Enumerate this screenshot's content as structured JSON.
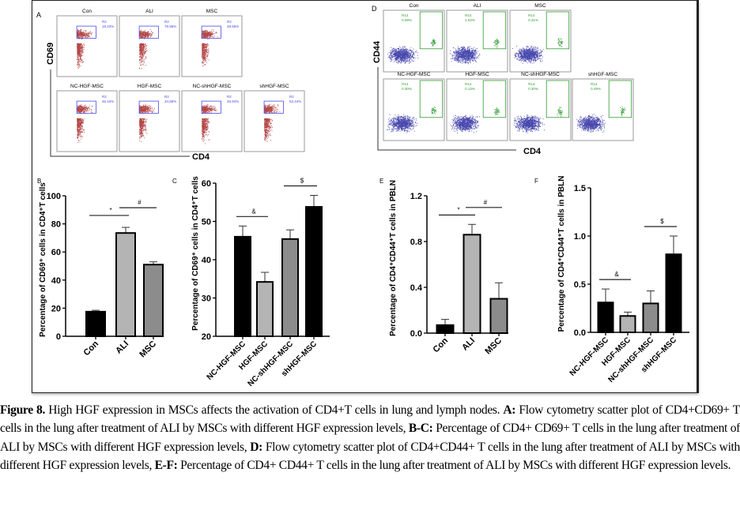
{
  "figure": {
    "panel_a": {
      "letter": "A",
      "y_label": "CD69",
      "x_label": "CD4",
      "gate_color": "#4a4ae8",
      "dot_color": "#a01818",
      "plots": [
        {
          "title": "Con",
          "gate": "R2",
          "value": "18.23%"
        },
        {
          "title": "ALI",
          "gate": "R2",
          "value": "76.86%"
        },
        {
          "title": "MSC",
          "gate": "R2",
          "value": "48.55%"
        },
        {
          "title": "NC-HGF-MSC",
          "gate": "R2",
          "value": "46.15%"
        },
        {
          "title": "HGF-MSC",
          "gate": "R2",
          "value": "34.86%"
        },
        {
          "title": "NC-shHGF-MSC",
          "gate": "R2",
          "value": "46.94%"
        },
        {
          "title": "shHGF-MSC",
          "gate": "R2",
          "value": "53.44%"
        }
      ]
    },
    "panel_d": {
      "letter": "D",
      "y_label": "CD44",
      "x_label": "CD4",
      "gate_color": "#2f9a2f",
      "dot_color": "#1a1a9a",
      "plots": [
        {
          "title": "Con",
          "gate": "R14",
          "value": "0.09%"
        },
        {
          "title": "ALI",
          "gate": "R14",
          "value": "1.02%"
        },
        {
          "title": "MSC",
          "gate": "R14",
          "value": "0.31%"
        },
        {
          "title": "NC-HGF-MSC",
          "gate": "R14",
          "value": "0.30%"
        },
        {
          "title": "HGF-MSC",
          "gate": "R14",
          "value": "0.13%"
        },
        {
          "title": "NC-shHGF-MSC",
          "gate": "R14",
          "value": "0.30%"
        },
        {
          "title": "shHGF-MSC",
          "gate": "R14",
          "value": "0.49%"
        }
      ]
    }
  },
  "chart_data": [
    {
      "panel": "B",
      "type": "bar",
      "ylabel": "Percentage of CD69⁺ cells in CD4⁺T cells",
      "ylim": [
        0,
        100
      ],
      "yticks": [
        "0",
        "20",
        "40",
        "60",
        "80",
        "100"
      ],
      "categories": [
        "Con",
        "ALI",
        "MSC"
      ],
      "values": [
        17.5,
        73.5,
        51
      ],
      "errors": [
        1,
        4,
        2
      ],
      "colors": [
        "#000000",
        "#b4b4b4",
        "#8c8c8c"
      ],
      "significance": [
        {
          "from": 0,
          "to": 1,
          "mark": "*"
        },
        {
          "from": 1,
          "to": 2,
          "mark": "#"
        }
      ]
    },
    {
      "panel": "C",
      "type": "bar",
      "ylabel": "Percentage of CD69⁺ cells in CD4⁺T cells",
      "ylim": [
        20,
        60
      ],
      "yticks": [
        "20",
        "30",
        "40",
        "50",
        "60"
      ],
      "categories": [
        "NC-HGF-MSC",
        "HGF-MSC",
        "NC-shHGF-MSC",
        "shHGF-MSC"
      ],
      "values": [
        46,
        34.2,
        45.4,
        53.8
      ],
      "errors": [
        2.8,
        2.5,
        2.4,
        3
      ],
      "colors": [
        "#000000",
        "#b4b4b4",
        "#8c8c8c",
        "#000000"
      ],
      "significance": [
        {
          "from": 0,
          "to": 1,
          "mark": "&"
        },
        {
          "from": 2,
          "to": 3,
          "mark": "$"
        }
      ]
    },
    {
      "panel": "E",
      "type": "bar",
      "ylabel": "Percentage of CD4⁺CD44⁺T cells in PBLN",
      "ylim": [
        0,
        1.2
      ],
      "yticks": [
        "0.0",
        "0.4",
        "0.8",
        "1.2"
      ],
      "categories": [
        "Con",
        "ALI",
        "MSC"
      ],
      "values": [
        0.07,
        0.86,
        0.3
      ],
      "errors": [
        0.05,
        0.09,
        0.14
      ],
      "colors": [
        "#000000",
        "#b4b4b4",
        "#8c8c8c"
      ],
      "significance": [
        {
          "from": 0,
          "to": 1,
          "mark": "*"
        },
        {
          "from": 1,
          "to": 2,
          "mark": "#"
        }
      ]
    },
    {
      "panel": "F",
      "type": "bar",
      "ylabel": "Percentage of CD4⁺CD44⁺T cells in PBLN",
      "ylim": [
        0,
        1.5
      ],
      "yticks": [
        "0.0",
        "0.5",
        "1.0",
        "1.5"
      ],
      "categories": [
        "NC-HGF-MSC",
        "HGF-MSC",
        "NC-shHGF-MSC",
        "shHGF-MSC"
      ],
      "values": [
        0.31,
        0.17,
        0.3,
        0.81
      ],
      "errors": [
        0.14,
        0.04,
        0.13,
        0.19
      ],
      "colors": [
        "#000000",
        "#b4b4b4",
        "#8c8c8c",
        "#000000"
      ],
      "significance": [
        {
          "from": 0,
          "to": 1,
          "mark": "&"
        },
        {
          "from": 2,
          "to": 3,
          "mark": "$"
        }
      ]
    }
  ],
  "caption": {
    "fig_label": "Figure 8.",
    "intro": " High HGF expression in MSCs affects the activation of CD4+T cells in lung and lymph nodes. ",
    "a_label": "A:",
    "a_text": " Flow cytometry scatter plot of CD4+CD69+ T cells in the lung after treatment of ALI by MSCs with different HGF expression levels, ",
    "bc_label": "B-C:",
    "bc_text": " Percentage of CD4+ CD69+ T cells in the lung after treatment of ALI by MSCs with different HGF expression levels, ",
    "d_label": "D:",
    "d_text": " Flow cytometry scatter plot of CD4+CD44+ T cells in the lung after treatment of ALI by MSCs with different HGF expression levels, ",
    "ef_label": "E-F:",
    "ef_text": " Percentage of CD4+ CD44+ T cells in the lung after treatment of ALI by MSCs with different HGF expression levels."
  }
}
